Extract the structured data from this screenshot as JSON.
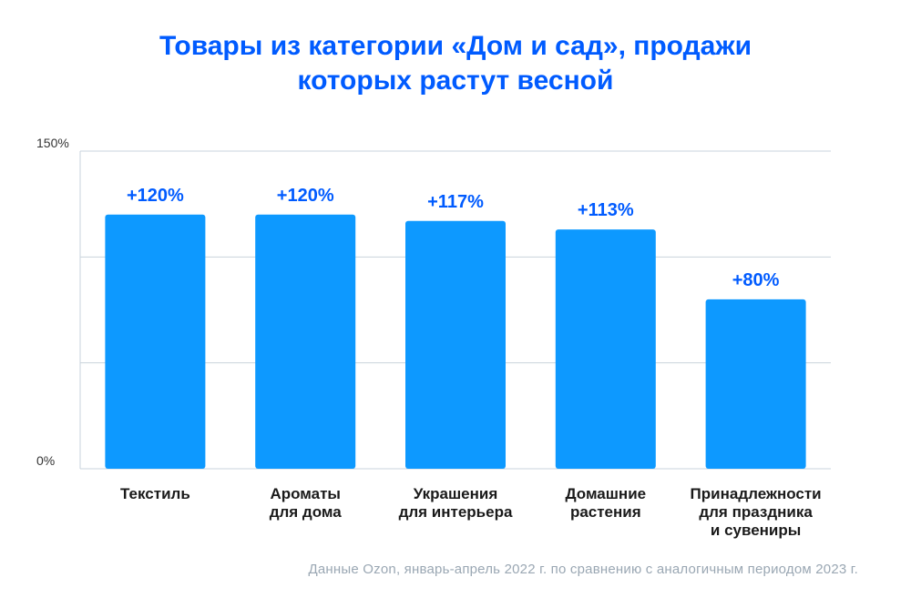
{
  "title": {
    "line1": "Товары из категории «Дом и сад», продажи",
    "line2": "которых растут весной"
  },
  "footnote": "Данные Ozon, январь-апрель 2022 г. по сравнению с аналогичным периодом 2023 г.",
  "colors": {
    "accent": "#005bff",
    "bar": "#0d99ff",
    "grid": "#c9d3dc",
    "axis_text": "#333333",
    "footnote": "#9aa7b3"
  },
  "chart_data": {
    "type": "bar",
    "title": "",
    "xlabel": "",
    "ylabel": "",
    "ylim": [
      0,
      150
    ],
    "y_tick_labels": [
      "150%",
      "0%"
    ],
    "grid": true,
    "categories": [
      [
        "Текстиль"
      ],
      [
        "Ароматы",
        "для дома"
      ],
      [
        "Украшения",
        "для интерьера"
      ],
      [
        "Домашние",
        "растения"
      ],
      [
        "Принадлежности",
        "для праздника",
        "и сувениры"
      ]
    ],
    "values": [
      120,
      120,
      117,
      113,
      80
    ],
    "data_labels": [
      "+120%",
      "+120%",
      "+117%",
      "+113%",
      "+80%"
    ]
  }
}
